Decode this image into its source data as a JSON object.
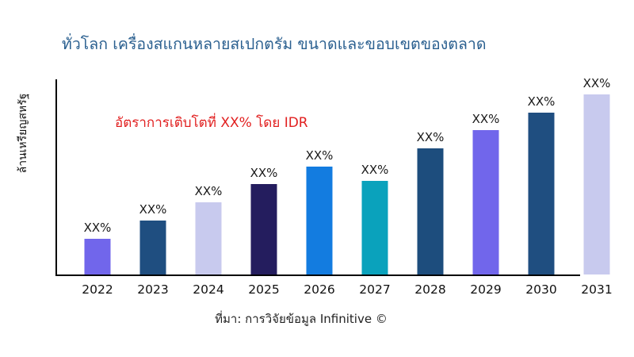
{
  "title": "ทั่วโลก เครื่องสแกนหลายสเปกตรัม ขนาดและขอบเขตของตลาด",
  "annotation": "อัตราการเติบโตที่ XX% โดย IDR",
  "y_axis_label": "ล้านเหรียญสหรัฐ",
  "source": "ที่มา: การวิจัยข้อมูล Infinitive ©",
  "colors": {
    "title": "#2b6090",
    "annotation": "#e11f1f",
    "axis": "#000000",
    "bar_label_text": "#1a1a1a"
  },
  "chart_data": {
    "type": "bar",
    "title": "ทั่วโลก เครื่องสแกนหลายสเปกตรัม ขนาดและขอบเขตของตลาด",
    "xlabel": "",
    "ylabel": "ล้านเหรียญสหรัฐ",
    "categories": [
      "2022",
      "2023",
      "2024",
      "2025",
      "2026",
      "2027",
      "2028",
      "2029",
      "2030",
      "2031"
    ],
    "values": [
      20,
      30,
      40,
      50,
      60,
      52,
      70,
      80,
      90,
      100
    ],
    "values_note": "actual values masked as XX% on chart; values are estimated bar heights as % of tallest bar (2031)",
    "bar_labels": [
      "XX%",
      "XX%",
      "XX%",
      "XX%",
      "XX%",
      "XX%",
      "XX%",
      "XX%",
      "XX%",
      "XX%"
    ],
    "bar_colors": [
      "#7166eb",
      "#1f4e80",
      "#c8caee",
      "#241d5e",
      "#137ce0",
      "#0aa2bc",
      "#1d4d7d",
      "#7166eb",
      "#1f4e80",
      "#c8caee"
    ],
    "legend": "none",
    "grid": "off",
    "y_ticks": "none visible",
    "annotation": "อัตราการเติบโตที่ XX% โดย IDR"
  }
}
